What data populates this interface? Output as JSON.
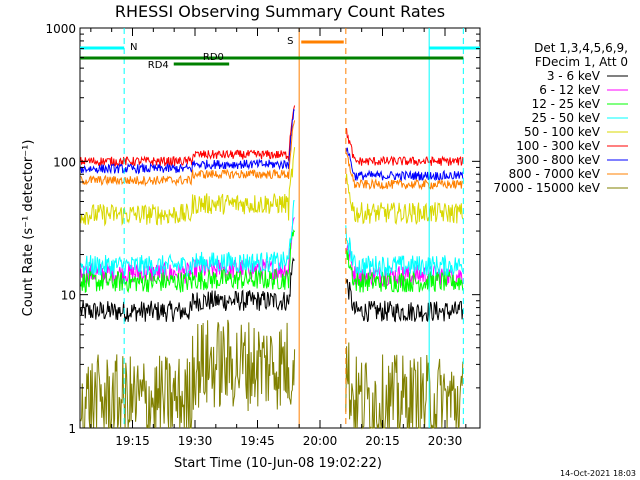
{
  "chart_data": {
    "type": "line",
    "title": "RHESSI Observing Summary Count Rates",
    "xlabel": "Start Time (10-Jun-08 19:02:22)",
    "ylabel": "Count Rate (s⁻¹ detector⁻¹)",
    "y_scale": "log",
    "ylim": [
      1,
      1000
    ],
    "xlim_minutes": [
      0,
      96
    ],
    "x_tick_labels": [
      "19:15",
      "19:30",
      "19:45",
      "20:00",
      "20:15",
      "20:30"
    ],
    "x_tick_minutes": [
      12.6,
      27.6,
      42.6,
      57.6,
      72.6,
      87.6
    ],
    "y_tick_labels": [
      "1",
      "10",
      "100",
      "1000"
    ],
    "y_tick_values": [
      1,
      10,
      100,
      1000
    ],
    "legend_header": [
      "Det 1,3,4,5,6,9,",
      "FDecim 1, Att 0"
    ],
    "footer_date": "14-Oct-2021 18:03",
    "flag_labels": {
      "night": "N",
      "saa": "S",
      "rd0": "RD0",
      "rd4": "RD4"
    },
    "night_intervals_min": [
      [
        0,
        10.6
      ],
      [
        83.8,
        96
      ]
    ],
    "saa_interval_min": [
      52.6,
      63.8
    ],
    "rd0_interval_min": [
      0,
      92
    ],
    "rd4_interval_min": [
      22.5,
      35.8
    ],
    "gap_interval_min": [
      51.5,
      63.8
    ],
    "series": [
      {
        "name": "3 - 6 keV",
        "color": "#000000",
        "level_pre": 7.5,
        "level_mid": 9.0,
        "level_post": 7.5
      },
      {
        "name": "6 - 12 keV",
        "color": "#ff00ff",
        "level_pre": 14.5,
        "level_mid": 15.5,
        "level_post": 14.0
      },
      {
        "name": "12 - 25 keV",
        "color": "#00ff00",
        "level_pre": 12.5,
        "level_mid": 13.0,
        "level_post": 12.5
      },
      {
        "name": "25 - 50 keV",
        "color": "#00ffff",
        "level_pre": 16.5,
        "level_mid": 17.5,
        "level_post": 16.5
      },
      {
        "name": "50 - 100 keV",
        "color": "#d8d800",
        "level_pre": 40,
        "level_mid": 48,
        "level_post": 41
      },
      {
        "name": "100 - 300 keV",
        "color": "#ff0000",
        "level_pre": 100,
        "level_mid": 112,
        "level_post": 100
      },
      {
        "name": "300 - 800 keV",
        "color": "#0000ff",
        "level_pre": 88,
        "level_mid": 95,
        "level_post": 78
      },
      {
        "name": "800 - 7000 keV",
        "color": "#ff8000",
        "level_pre": 72,
        "level_mid": 80,
        "level_post": 67
      },
      {
        "name": "7000 - 15000 keV",
        "color": "#808000",
        "level_pre": 1.6,
        "level_mid": 3.0,
        "level_post": 1.6
      }
    ]
  }
}
